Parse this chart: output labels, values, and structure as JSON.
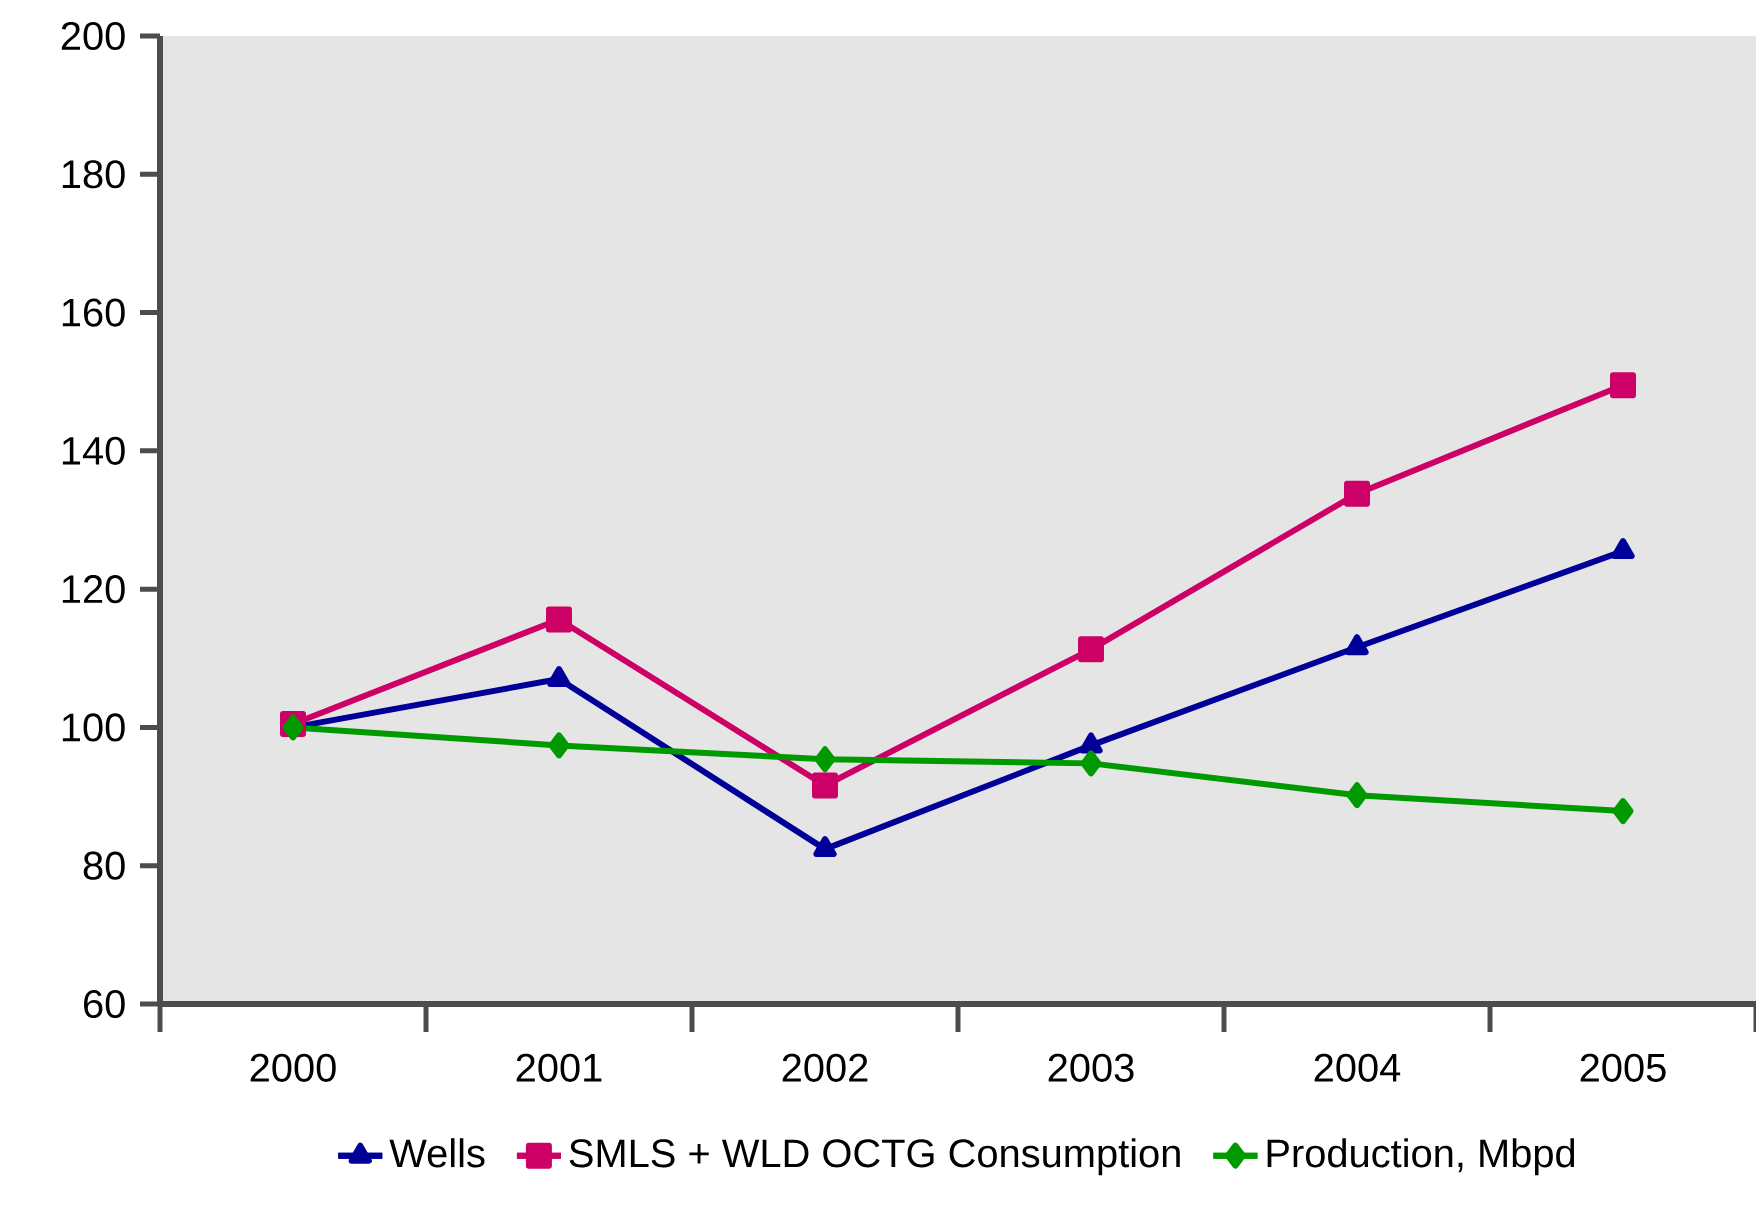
{
  "chart_data": {
    "type": "line",
    "categories": [
      "2000",
      "2001",
      "2002",
      "2003",
      "2004",
      "2005"
    ],
    "series": [
      {
        "name": "Wells",
        "color": "#000099",
        "marker": "triangle",
        "values": [
          100,
          107,
          82.4,
          97.4,
          111.6,
          125.5
        ]
      },
      {
        "name": "SMLS + WLD OCTG Consumption",
        "color": "#cc0066",
        "marker": "square",
        "values": [
          100.5,
          115.6,
          91.6,
          111.3,
          133.8,
          149.5
        ]
      },
      {
        "name": "Production, Mbpd",
        "color": "#009900",
        "marker": "diamond",
        "values": [
          100,
          97.4,
          95.4,
          94.8,
          90.2,
          87.9
        ]
      }
    ],
    "ylim": [
      60,
      200
    ],
    "yticks": [
      60,
      80,
      100,
      120,
      140,
      160,
      180,
      200
    ],
    "grid": false,
    "legend": "bottom"
  }
}
